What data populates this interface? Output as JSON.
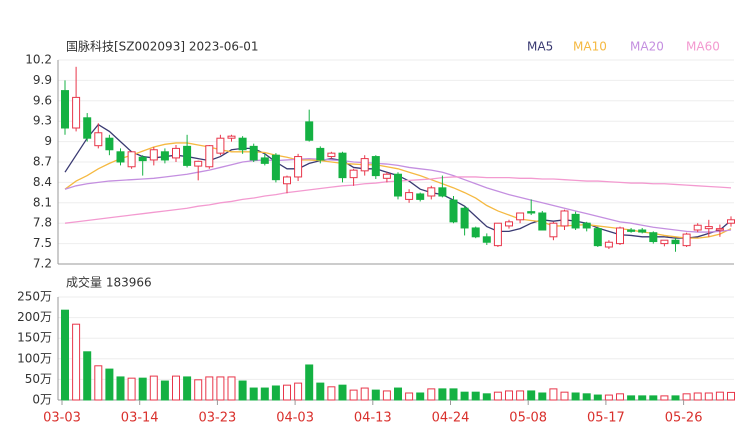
{
  "chart_data": [
    {
      "type": "candlestick",
      "title": "国脉科技[SZ002093] 2023-06-01",
      "up_color": "#e8364a",
      "down_color": "#14b143",
      "grid": true,
      "ylim": [
        7.2,
        10.2
      ],
      "yticks": [
        7.2,
        7.5,
        7.8,
        8.1,
        8.4,
        8.7,
        9,
        9.3,
        9.6,
        9.9,
        10.2
      ],
      "open": [
        9.75,
        9.2,
        9.35,
        8.94,
        9.05,
        8.85,
        8.63,
        8.77,
        8.73,
        8.85,
        8.76,
        8.93,
        8.64,
        8.63,
        8.83,
        9.05,
        9.05,
        8.93,
        8.76,
        8.8,
        8.38,
        8.48,
        9.29,
        8.9,
        8.78,
        8.83,
        8.47,
        8.57,
        8.78,
        8.46,
        8.52,
        8.15,
        8.23,
        8.2,
        8.32,
        8.14,
        8.02,
        7.73,
        7.6,
        7.47,
        7.76,
        7.85,
        7.97,
        7.95,
        7.6,
        7.76,
        7.93,
        7.8,
        7.72,
        7.45,
        7.5,
        7.7,
        7.7,
        7.66,
        7.5,
        7.55,
        7.47,
        7.7,
        7.72,
        7.7,
        7.8
      ],
      "high": [
        9.9,
        10.1,
        9.42,
        9.27,
        9.1,
        8.9,
        8.85,
        8.8,
        8.92,
        8.9,
        8.95,
        9.1,
        8.72,
        8.95,
        9.1,
        9.1,
        9.08,
        8.97,
        8.82,
        8.83,
        8.5,
        8.82,
        9.47,
        8.93,
        8.85,
        8.85,
        8.6,
        8.8,
        8.8,
        8.55,
        8.55,
        8.3,
        8.25,
        8.35,
        8.5,
        8.2,
        8.05,
        7.75,
        7.65,
        7.8,
        7.85,
        7.95,
        8.15,
        7.98,
        7.82,
        8.0,
        7.97,
        7.82,
        7.75,
        7.55,
        7.75,
        7.73,
        7.73,
        7.68,
        7.55,
        7.58,
        7.66,
        7.8,
        7.85,
        7.78,
        7.9
      ],
      "low": [
        9.1,
        9.15,
        9.0,
        8.9,
        8.8,
        8.65,
        8.6,
        8.5,
        8.65,
        8.68,
        8.7,
        8.62,
        8.43,
        8.6,
        8.8,
        9.0,
        8.82,
        8.7,
        8.65,
        8.4,
        8.24,
        8.42,
        9.0,
        8.68,
        8.75,
        8.4,
        8.35,
        8.5,
        8.45,
        8.4,
        8.15,
        8.1,
        8.12,
        8.15,
        8.18,
        7.8,
        7.62,
        7.58,
        7.48,
        7.45,
        7.72,
        7.8,
        7.92,
        7.7,
        7.55,
        7.7,
        7.7,
        7.68,
        7.45,
        7.42,
        7.48,
        7.66,
        7.65,
        7.5,
        7.46,
        7.38,
        7.45,
        7.67,
        7.6,
        7.6,
        7.75
      ],
      "close": [
        9.2,
        9.65,
        9.05,
        9.13,
        8.88,
        8.7,
        8.85,
        8.72,
        8.88,
        8.73,
        8.9,
        8.65,
        8.71,
        8.94,
        9.05,
        9.08,
        8.88,
        8.73,
        8.68,
        8.44,
        8.48,
        8.78,
        9.02,
        8.73,
        8.83,
        8.47,
        8.58,
        8.75,
        8.5,
        8.52,
        8.2,
        8.25,
        8.15,
        8.32,
        8.2,
        7.82,
        7.73,
        7.6,
        7.52,
        7.8,
        7.82,
        7.95,
        7.95,
        7.7,
        7.8,
        7.98,
        7.73,
        7.73,
        7.47,
        7.52,
        7.73,
        7.68,
        7.67,
        7.53,
        7.55,
        7.5,
        7.64,
        7.77,
        7.75,
        7.72,
        7.85
      ],
      "series": [
        {
          "name": "MA5",
          "color": "#3a3a72",
          "values": [
            8.55,
            8.8,
            9.05,
            9.25,
            9.15,
            9.0,
            8.85,
            8.78,
            8.76,
            8.78,
            8.8,
            8.78,
            8.75,
            8.72,
            8.78,
            8.88,
            8.9,
            8.9,
            8.82,
            8.7,
            8.6,
            8.6,
            8.68,
            8.72,
            8.75,
            8.72,
            8.62,
            8.6,
            8.6,
            8.55,
            8.5,
            8.42,
            8.3,
            8.25,
            8.22,
            8.14,
            8.05,
            7.9,
            7.75,
            7.68,
            7.68,
            7.72,
            7.8,
            7.85,
            7.83,
            7.85,
            7.83,
            7.8,
            7.73,
            7.68,
            7.63,
            7.62,
            7.6,
            7.6,
            7.6,
            7.58,
            7.58,
            7.6,
            7.65,
            7.7,
            7.84
          ]
        },
        {
          "name": "MA10",
          "color": "#f5b942",
          "values": [
            8.3,
            8.42,
            8.5,
            8.6,
            8.68,
            8.75,
            8.8,
            8.86,
            8.92,
            8.96,
            8.98,
            8.98,
            8.95,
            8.92,
            8.88,
            8.85,
            8.85,
            8.85,
            8.84,
            8.8,
            8.77,
            8.73,
            8.73,
            8.72,
            8.7,
            8.68,
            8.67,
            8.66,
            8.66,
            8.63,
            8.6,
            8.55,
            8.5,
            8.44,
            8.38,
            8.32,
            8.25,
            8.17,
            8.06,
            7.98,
            7.92,
            7.86,
            7.84,
            7.82,
            7.76,
            7.76,
            7.77,
            7.78,
            7.76,
            7.74,
            7.72,
            7.7,
            7.67,
            7.65,
            7.62,
            7.6,
            7.58,
            7.58,
            7.6,
            7.64,
            7.72
          ]
        },
        {
          "name": "MA20",
          "color": "#c48fe0",
          "values": [
            8.3,
            8.35,
            8.38,
            8.4,
            8.42,
            8.43,
            8.44,
            8.45,
            8.46,
            8.48,
            8.5,
            8.52,
            8.55,
            8.58,
            8.62,
            8.66,
            8.7,
            8.72,
            8.73,
            8.72,
            8.73,
            8.74,
            8.75,
            8.74,
            8.73,
            8.72,
            8.7,
            8.69,
            8.68,
            8.67,
            8.65,
            8.62,
            8.6,
            8.58,
            8.55,
            8.5,
            8.44,
            8.38,
            8.32,
            8.27,
            8.22,
            8.18,
            8.14,
            8.1,
            8.06,
            8.02,
            7.98,
            7.94,
            7.9,
            7.86,
            7.82,
            7.8,
            7.77,
            7.74,
            7.72,
            7.7,
            7.68,
            7.67,
            7.67,
            7.68,
            7.7
          ]
        },
        {
          "name": "MA60",
          "color": "#f39ad0",
          "values": [
            7.8,
            7.82,
            7.84,
            7.86,
            7.88,
            7.9,
            7.92,
            7.94,
            7.96,
            7.98,
            8.0,
            8.02,
            8.05,
            8.07,
            8.1,
            8.12,
            8.15,
            8.17,
            8.2,
            8.22,
            8.25,
            8.27,
            8.29,
            8.31,
            8.33,
            8.35,
            8.36,
            8.38,
            8.39,
            8.41,
            8.42,
            8.43,
            8.44,
            8.45,
            8.47,
            8.48,
            8.48,
            8.48,
            8.47,
            8.47,
            8.47,
            8.46,
            8.46,
            8.45,
            8.45,
            8.44,
            8.43,
            8.42,
            8.42,
            8.41,
            8.4,
            8.39,
            8.39,
            8.38,
            8.38,
            8.37,
            8.36,
            8.35,
            8.34,
            8.33,
            8.32
          ]
        }
      ]
    },
    {
      "type": "bar",
      "title": "成交量 183966",
      "categories": [
        "03-03",
        null,
        null,
        null,
        null,
        null,
        null,
        "03-14",
        null,
        null,
        null,
        null,
        null,
        null,
        "03-23",
        null,
        null,
        null,
        null,
        null,
        null,
        "04-03",
        null,
        null,
        null,
        null,
        null,
        null,
        "04-13",
        null,
        null,
        null,
        null,
        null,
        null,
        "04-24",
        null,
        null,
        null,
        null,
        null,
        null,
        "05-08",
        null,
        null,
        null,
        null,
        null,
        null,
        "05-17",
        null,
        null,
        null,
        null,
        null,
        null,
        "05-26",
        null,
        null,
        null,
        null
      ],
      "values": [
        218,
        184,
        117,
        83,
        75,
        56,
        53,
        53,
        58,
        46,
        58,
        56,
        49,
        56,
        56,
        56,
        46,
        29,
        29,
        34,
        36,
        41,
        85,
        41,
        32,
        36,
        24,
        29,
        24,
        22,
        29,
        17,
        17,
        27,
        27,
        27,
        19,
        19,
        15,
        19,
        22,
        22,
        22,
        17,
        27,
        19,
        17,
        15,
        12,
        12,
        15,
        10,
        10,
        10,
        10,
        10,
        15,
        17,
        17,
        19,
        18.3966
      ],
      "ylim": [
        0,
        250
      ],
      "grid": true,
      "yticks": [
        {
          "value": 0,
          "label": "0万"
        },
        {
          "value": 50,
          "label": "50万"
        },
        {
          "value": 100,
          "label": "100万"
        },
        {
          "value": 150,
          "label": "150万"
        },
        {
          "value": 200,
          "label": "200万"
        },
        {
          "value": 250,
          "label": "250万"
        }
      ]
    }
  ]
}
